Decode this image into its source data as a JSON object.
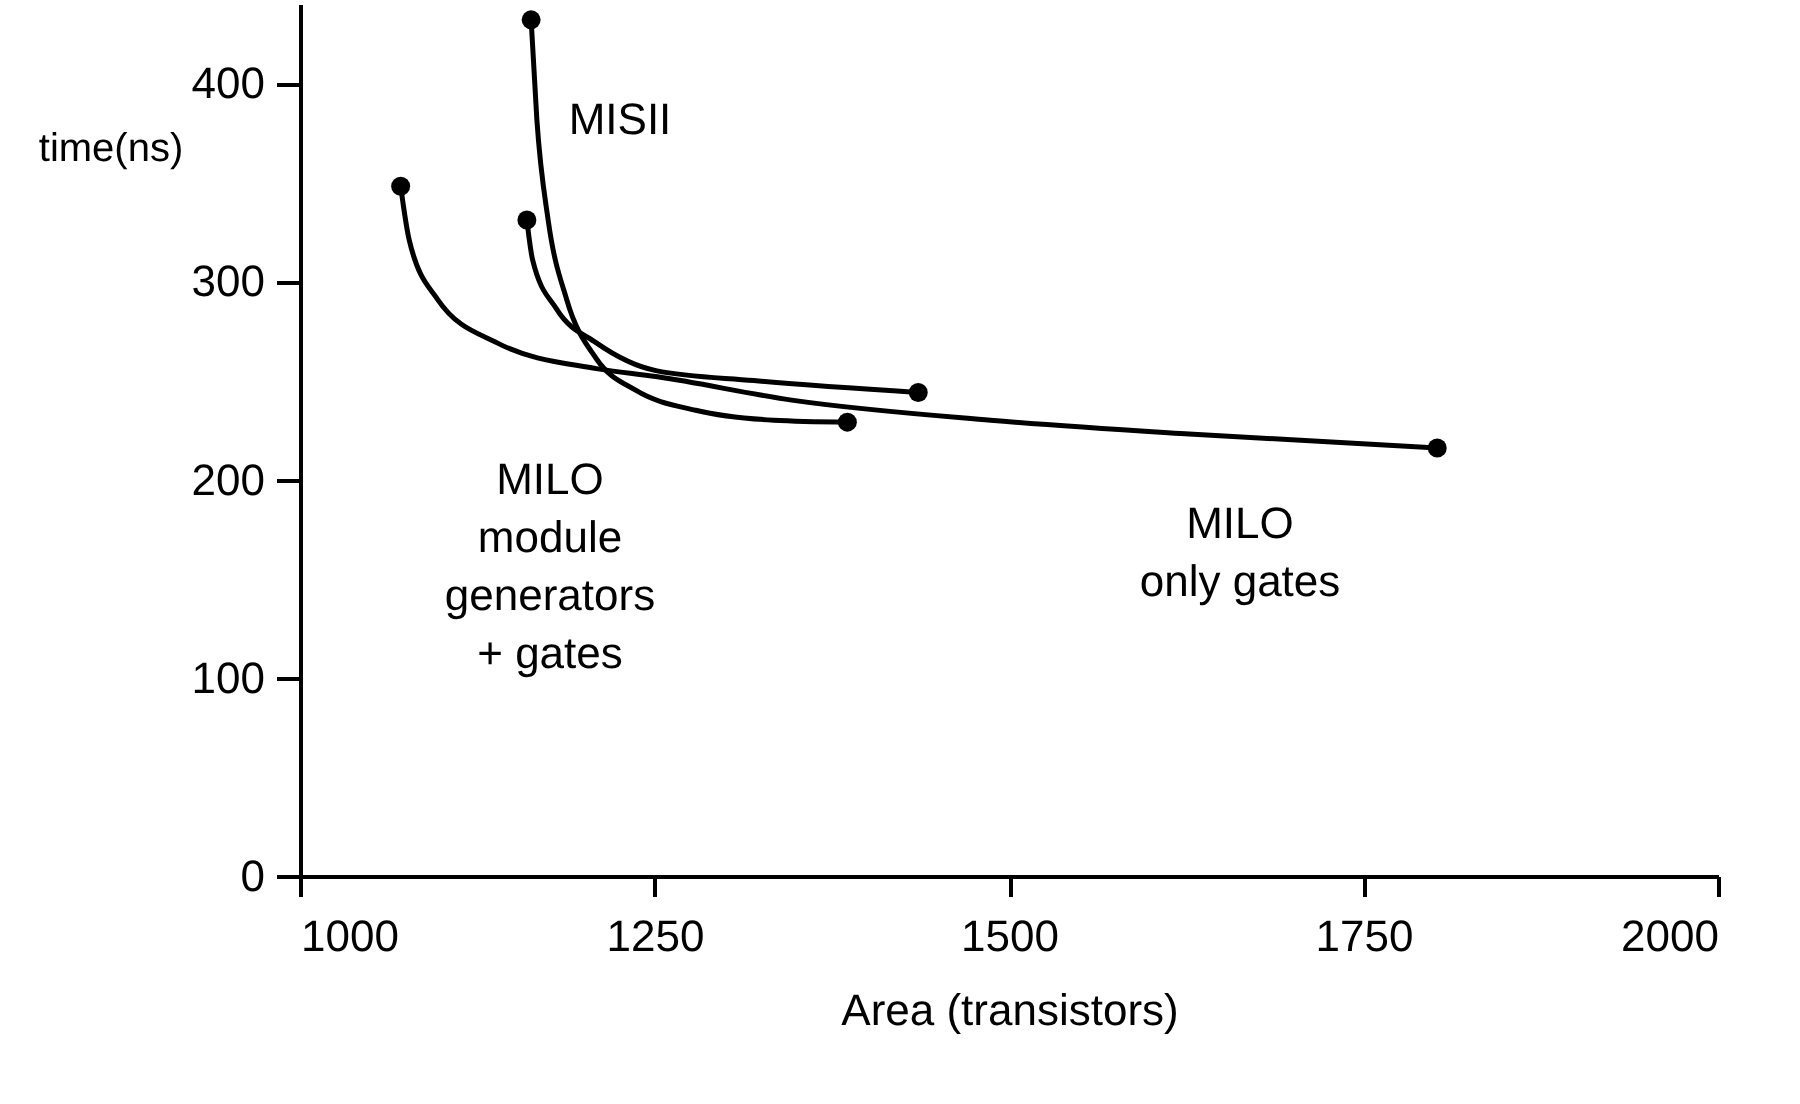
{
  "chart_data": {
    "type": "line",
    "xlabel": "Area (transistors)",
    "ylabel": "time(ns)",
    "xlim": [
      1000,
      2000
    ],
    "xticks": [
      1000,
      1250,
      1500,
      1750,
      2000
    ],
    "ylim": [
      0,
      440
    ],
    "yticks": [
      0,
      100,
      200,
      300,
      400
    ],
    "grid": false,
    "line_style": "solid",
    "series": [
      {
        "color": "#000000",
        "x": [
          1163,
          1167,
          1175,
          1188,
          1209,
          1237,
          1279,
          1334,
          1386
        ],
        "values": [
          432,
          382,
          331,
          291,
          261,
          245,
          235,
          230,
          229
        ]
      },
      {
        "color": "#000000",
        "x": [
          1071,
          1077,
          1097,
          1139,
          1209,
          1251,
          1348,
          1487,
          1627,
          1802
        ],
        "values": [
          348,
          321,
          291,
          269,
          256,
          252,
          240,
          230,
          223,
          216
        ]
      },
      {
        "color": "#000000",
        "x": [
          1160,
          1164,
          1181,
          1209,
          1251,
          1320,
          1436
        ],
        "values": [
          331,
          311,
          286,
          269,
          255,
          250,
          244
        ]
      }
    ],
    "annotations": [
      "MISII",
      "MILO\nmodule\ngenerators\n+ gates",
      "MILO\nonly gates"
    ]
  }
}
